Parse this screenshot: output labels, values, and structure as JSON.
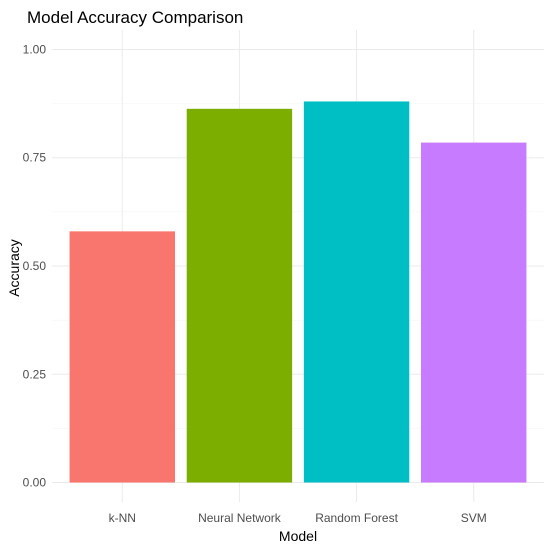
{
  "chart_data": {
    "type": "bar",
    "title": "Model Accuracy Comparison",
    "xlabel": "Model",
    "ylabel": "Accuracy",
    "categories": [
      "k-NN",
      "Neural Network",
      "Random Forest",
      "SVM"
    ],
    "values": [
      0.58,
      0.863,
      0.88,
      0.785
    ],
    "colors": [
      "#F8766D",
      "#7CAE00",
      "#00BFC4",
      "#C77CFF"
    ],
    "ylim": [
      0,
      1.0
    ],
    "yticks": [
      "0.00",
      "0.25",
      "0.50",
      "0.75",
      "1.00"
    ],
    "ytick_values": [
      0,
      0.25,
      0.5,
      0.75,
      1.0
    ],
    "grid": true,
    "legend": "none"
  }
}
